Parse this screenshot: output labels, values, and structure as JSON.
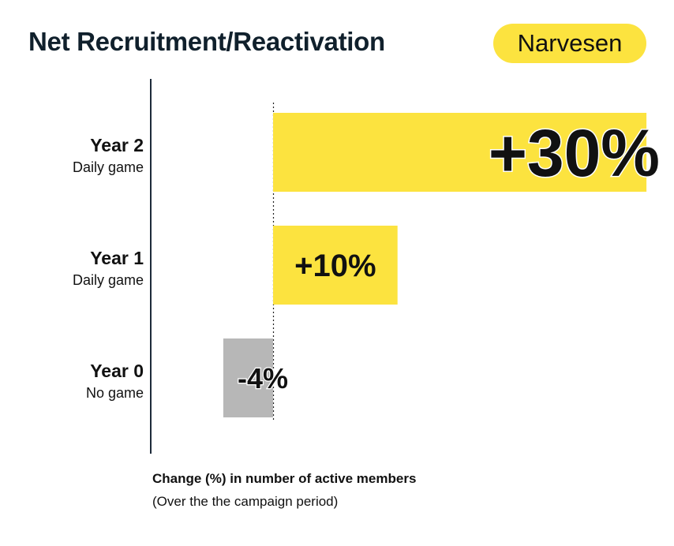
{
  "header": {
    "title": "Net Recruitment/Reactivation",
    "badge": "Narvesen"
  },
  "colors": {
    "positive": "#fce33f",
    "negative": "#b7b7b7",
    "axis": "#1d2a3a",
    "text": "#111111"
  },
  "chart_data": {
    "type": "bar",
    "orientation": "horizontal",
    "categories": [
      {
        "label": "Year 2",
        "sublabel": "Daily game"
      },
      {
        "label": "Year 1",
        "sublabel": "Daily game"
      },
      {
        "label": "Year 0",
        "sublabel": "No game"
      }
    ],
    "values": [
      30,
      10,
      -4
    ],
    "data_labels": [
      "+30%",
      "+10%",
      "-4%"
    ],
    "xlabel": "Change (%) in number of active members",
    "xlabel_note": "(Over the the campaign period)",
    "zero_line": "dotted",
    "grid": false,
    "legend": "none"
  }
}
